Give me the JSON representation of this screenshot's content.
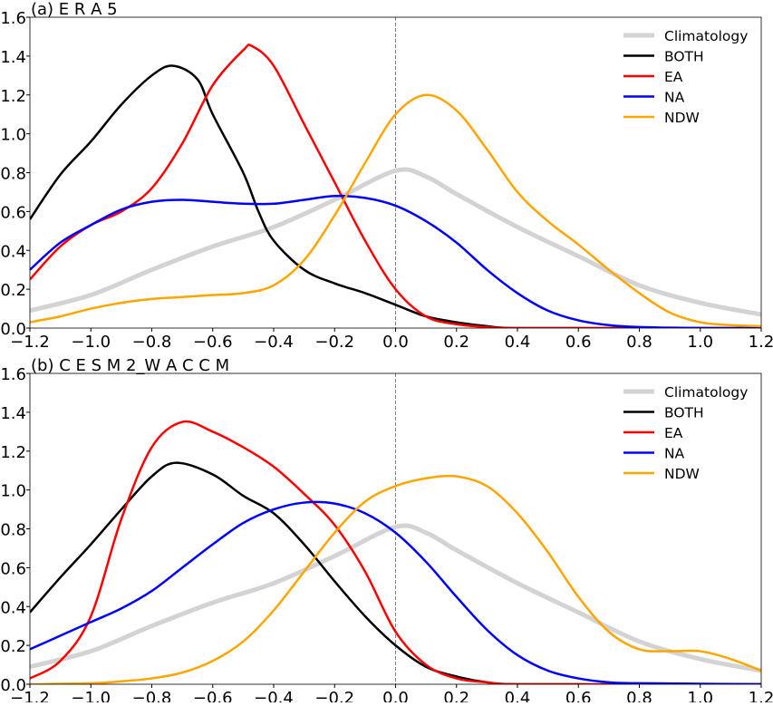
{
  "chart_data": [
    {
      "type": "line",
      "title": "(a) E R A 5",
      "xlabel": "",
      "ylabel": "",
      "xlim": [
        -1.2,
        1.2
      ],
      "ylim": [
        0,
        1.6
      ],
      "xticks": [
        -1.2,
        -1.0,
        -0.8,
        -0.6,
        -0.4,
        -0.2,
        0.0,
        0.2,
        0.4,
        0.6,
        0.8,
        1.0,
        1.2
      ],
      "xtick_labels": [
        "−1.2",
        "−1.0",
        "−0.8",
        "−0.6",
        "−0.4",
        "−0.2",
        "0.0",
        "0.2",
        "0.4",
        "0.6",
        "0.8",
        "1.0",
        "1.2"
      ],
      "yticks": [
        0,
        0.2,
        0.4,
        0.6,
        0.8,
        1.0,
        1.2,
        1.4,
        1.6
      ],
      "ytick_labels": [
        "0.0",
        "0.2",
        "0.4",
        "0.6",
        "0.8",
        "1.0",
        "1.2",
        "1.4",
        "1.6"
      ],
      "vline": 0.0,
      "legend_position": "top-right",
      "series": [
        {
          "name": "Climatology",
          "color": "#d3d3d3",
          "width": 5,
          "x": [
            -1.2,
            -1.0,
            -0.8,
            -0.6,
            -0.4,
            -0.2,
            0.0,
            0.1,
            0.2,
            0.4,
            0.6,
            0.8,
            1.0,
            1.2
          ],
          "y": [
            0.09,
            0.17,
            0.3,
            0.42,
            0.52,
            0.66,
            0.81,
            0.78,
            0.69,
            0.52,
            0.37,
            0.22,
            0.13,
            0.07
          ]
        },
        {
          "name": "BOTH",
          "color": "#000000",
          "width": 2.5,
          "x": [
            -1.2,
            -1.1,
            -1.0,
            -0.9,
            -0.8,
            -0.73,
            -0.65,
            -0.6,
            -0.5,
            -0.45,
            -0.4,
            -0.3,
            -0.2,
            -0.1,
            0.0,
            0.1,
            0.2,
            0.3,
            0.4,
            0.8,
            1.2
          ],
          "y": [
            0.56,
            0.79,
            0.96,
            1.15,
            1.3,
            1.35,
            1.28,
            1.1,
            0.8,
            0.6,
            0.45,
            0.3,
            0.23,
            0.18,
            0.12,
            0.06,
            0.03,
            0.01,
            0.0,
            0.0,
            0.0
          ]
        },
        {
          "name": "EA",
          "color": "#ff0000",
          "width": 2.5,
          "x": [
            -1.2,
            -1.1,
            -1.0,
            -0.9,
            -0.8,
            -0.7,
            -0.6,
            -0.5,
            -0.47,
            -0.4,
            -0.3,
            -0.2,
            -0.1,
            0.0,
            0.1,
            0.2,
            0.3,
            0.4,
            0.8,
            1.2
          ],
          "y": [
            0.25,
            0.42,
            0.53,
            0.6,
            0.72,
            0.95,
            1.25,
            1.43,
            1.45,
            1.35,
            1.05,
            0.75,
            0.45,
            0.2,
            0.06,
            0.02,
            0.005,
            0.0,
            0.0,
            0.0
          ]
        },
        {
          "name": "NA",
          "color": "#0000ff",
          "width": 2.5,
          "x": [
            -1.2,
            -1.1,
            -1.0,
            -0.9,
            -0.8,
            -0.7,
            -0.6,
            -0.5,
            -0.4,
            -0.3,
            -0.2,
            -0.1,
            0.0,
            0.1,
            0.2,
            0.3,
            0.4,
            0.5,
            0.6,
            0.7,
            0.8,
            1.0,
            1.2
          ],
          "y": [
            0.3,
            0.44,
            0.53,
            0.61,
            0.65,
            0.66,
            0.65,
            0.64,
            0.64,
            0.66,
            0.68,
            0.67,
            0.63,
            0.55,
            0.44,
            0.3,
            0.18,
            0.09,
            0.04,
            0.015,
            0.005,
            0.0,
            0.0
          ]
        },
        {
          "name": "NDW",
          "color": "#ffa500",
          "width": 2.5,
          "x": [
            -1.2,
            -1.1,
            -1.0,
            -0.9,
            -0.8,
            -0.7,
            -0.6,
            -0.5,
            -0.4,
            -0.3,
            -0.2,
            -0.1,
            0.0,
            0.1,
            0.2,
            0.3,
            0.4,
            0.5,
            0.6,
            0.7,
            0.8,
            0.9,
            1.0,
            1.1,
            1.2
          ],
          "y": [
            0.03,
            0.06,
            0.1,
            0.13,
            0.15,
            0.16,
            0.17,
            0.18,
            0.22,
            0.35,
            0.58,
            0.85,
            1.1,
            1.2,
            1.12,
            0.92,
            0.7,
            0.55,
            0.43,
            0.3,
            0.18,
            0.08,
            0.03,
            0.015,
            0.01
          ]
        }
      ]
    },
    {
      "type": "line",
      "title": "(b) C E S M 2_W A C C M",
      "xlabel": "",
      "ylabel": "",
      "xlim": [
        -1.2,
        1.2
      ],
      "ylim": [
        0,
        1.6
      ],
      "xticks": [
        -1.2,
        -1.0,
        -0.8,
        -0.6,
        -0.4,
        -0.2,
        0.0,
        0.2,
        0.4,
        0.6,
        0.8,
        1.0,
        1.2
      ],
      "xtick_labels": [
        "−1.2",
        "−1.0",
        "−0.8",
        "−0.6",
        "−0.4",
        "−0.2",
        "0.0",
        "0.2",
        "0.4",
        "0.6",
        "0.8",
        "1.0",
        "1.2"
      ],
      "yticks": [
        0,
        0.2,
        0.4,
        0.6,
        0.8,
        1.0,
        1.2,
        1.4,
        1.6
      ],
      "ytick_labels": [
        "0.0",
        "0.2",
        "0.4",
        "0.6",
        "0.8",
        "1.0",
        "1.2",
        "1.4",
        "1.6"
      ],
      "vline": 0.0,
      "legend_position": "top-right",
      "series": [
        {
          "name": "Climatology",
          "color": "#d3d3d3",
          "width": 5,
          "x": [
            -1.2,
            -1.0,
            -0.8,
            -0.6,
            -0.4,
            -0.2,
            0.0,
            0.1,
            0.2,
            0.4,
            0.6,
            0.8,
            1.0,
            1.2
          ],
          "y": [
            0.09,
            0.17,
            0.3,
            0.42,
            0.52,
            0.66,
            0.81,
            0.78,
            0.69,
            0.52,
            0.37,
            0.22,
            0.13,
            0.07
          ]
        },
        {
          "name": "BOTH",
          "color": "#000000",
          "width": 2.5,
          "x": [
            -1.2,
            -1.1,
            -1.0,
            -0.9,
            -0.8,
            -0.72,
            -0.6,
            -0.5,
            -0.4,
            -0.3,
            -0.2,
            -0.1,
            0.0,
            0.1,
            0.2,
            0.3,
            0.4,
            0.8,
            1.2
          ],
          "y": [
            0.37,
            0.55,
            0.72,
            0.9,
            1.07,
            1.14,
            1.08,
            0.97,
            0.88,
            0.72,
            0.53,
            0.35,
            0.2,
            0.09,
            0.04,
            0.01,
            0.0,
            0.0,
            0.0
          ]
        },
        {
          "name": "EA",
          "color": "#ff0000",
          "width": 2.5,
          "x": [
            -1.2,
            -1.1,
            -1.0,
            -0.9,
            -0.8,
            -0.7,
            -0.6,
            -0.5,
            -0.4,
            -0.3,
            -0.2,
            -0.1,
            0.0,
            0.1,
            0.2,
            0.3,
            0.4,
            0.8,
            1.2
          ],
          "y": [
            0.03,
            0.12,
            0.35,
            0.85,
            1.22,
            1.35,
            1.3,
            1.22,
            1.12,
            0.98,
            0.82,
            0.58,
            0.27,
            0.1,
            0.03,
            0.01,
            0.0,
            0.0,
            0.0
          ]
        },
        {
          "name": "NA",
          "color": "#0000ff",
          "width": 2.5,
          "x": [
            -1.2,
            -1.1,
            -1.0,
            -0.9,
            -0.8,
            -0.7,
            -0.6,
            -0.5,
            -0.4,
            -0.3,
            -0.2,
            -0.1,
            0.0,
            0.1,
            0.2,
            0.3,
            0.4,
            0.5,
            0.6,
            0.7,
            0.8,
            1.2
          ],
          "y": [
            0.18,
            0.25,
            0.32,
            0.39,
            0.48,
            0.6,
            0.72,
            0.83,
            0.9,
            0.935,
            0.93,
            0.88,
            0.78,
            0.63,
            0.45,
            0.28,
            0.15,
            0.07,
            0.03,
            0.01,
            0.005,
            0.0
          ]
        },
        {
          "name": "NDW",
          "color": "#ffa500",
          "width": 2.5,
          "x": [
            -1.2,
            -1.0,
            -0.9,
            -0.8,
            -0.7,
            -0.6,
            -0.5,
            -0.4,
            -0.3,
            -0.2,
            -0.1,
            0.0,
            0.1,
            0.2,
            0.3,
            0.4,
            0.5,
            0.6,
            0.7,
            0.8,
            0.9,
            1.0,
            1.1,
            1.2
          ],
          "y": [
            0.0,
            0.005,
            0.015,
            0.03,
            0.06,
            0.12,
            0.22,
            0.38,
            0.58,
            0.78,
            0.94,
            1.02,
            1.06,
            1.07,
            1.02,
            0.88,
            0.68,
            0.45,
            0.27,
            0.18,
            0.17,
            0.17,
            0.13,
            0.07
          ]
        }
      ]
    }
  ]
}
